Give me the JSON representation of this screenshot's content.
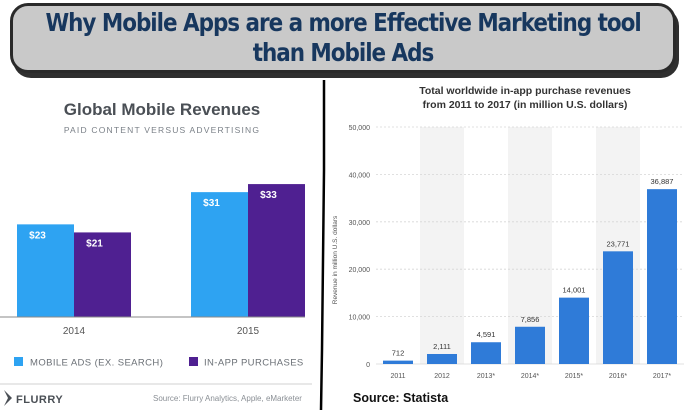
{
  "banner": {
    "line1": "Why Mobile Apps are a more Effective Marketing tool",
    "line2": "than Mobile Ads"
  },
  "colors": {
    "banner_bg": "#c9c9c9",
    "banner_text": "#17375e",
    "mobile_ads": "#2ea3f2",
    "in_app": "#4f2091",
    "statista_bar": "#2f7bd8"
  },
  "left_chart": {
    "title": "Global Mobile Revenues",
    "subtitle": "PAID CONTENT VERSUS ADVERTISING",
    "source": "Source: Flurry Analytics, Apple, eMarketer",
    "logo_text": "FLURRY",
    "legend": [
      "MOBILE ADS (EX. SEARCH)",
      "IN-APP PURCHASES"
    ]
  },
  "right_chart": {
    "title_line1": "Total worldwide in-app purchase revenues",
    "title_line2": "from 2011 to 2017 (in million U.S. dollars)",
    "ylabel": "Revenue in million U.S. dollars",
    "source": "Source: Statista"
  },
  "chart_data": [
    {
      "type": "bar",
      "title": "Global Mobile Revenues",
      "subtitle": "PAID CONTENT VERSUS ADVERTISING",
      "categories": [
        "2014",
        "2015"
      ],
      "series": [
        {
          "name": "MOBILE ADS (EX. SEARCH)",
          "values": [
            23,
            31
          ],
          "labels": [
            "$23",
            "$31"
          ],
          "color": "#2ea3f2"
        },
        {
          "name": "IN-APP PURCHASES",
          "values": [
            21,
            33
          ],
          "labels": [
            "$21",
            "$33"
          ],
          "color": "#4f2091"
        }
      ],
      "ylim": [
        0,
        36
      ],
      "grid": false,
      "legend_position": "bottom"
    },
    {
      "type": "bar",
      "title": "Total worldwide in-app purchase revenues from 2011 to 2017 (in million U.S. dollars)",
      "categories": [
        "2011",
        "2012",
        "2013*",
        "2014*",
        "2015*",
        "2016*",
        "2017*"
      ],
      "values": [
        712,
        2111,
        4591,
        7856,
        14001,
        23771,
        36887
      ],
      "value_labels": [
        "712",
        "2,111",
        "4,591",
        "7,856",
        "14,001",
        "23,771",
        "36,887"
      ],
      "ylabel": "Revenue in million U.S. dollars",
      "ylim": [
        0,
        50000
      ],
      "yticks": [
        "0",
        "10,000",
        "20,000",
        "30,000",
        "40,000",
        "50,000"
      ],
      "ytick_values": [
        0,
        10000,
        20000,
        30000,
        40000,
        50000
      ],
      "grid": true
    }
  ]
}
